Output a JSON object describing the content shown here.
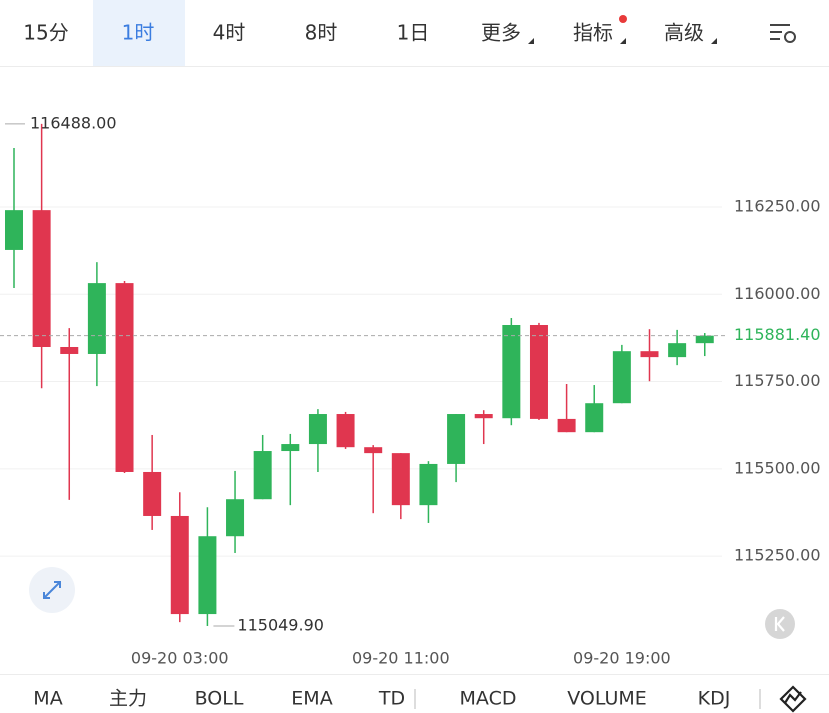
{
  "tabs": [
    "15分",
    "1时",
    "4时",
    "8时",
    "1日",
    "更多",
    "指标",
    "高级"
  ],
  "active_tab": 1,
  "indicators": [
    "MA",
    "主力",
    "BOLL",
    "EMA",
    "TD",
    "MACD",
    "VOLUME",
    "KDJ"
  ],
  "chart_data": {
    "type": "candlestick",
    "categories": [
      null,
      null,
      null,
      null,
      null,
      null,
      "09-20 03:00",
      null,
      null,
      null,
      null,
      null,
      null,
      null,
      "09-20 11:00",
      null,
      null,
      null,
      null,
      null,
      null,
      null,
      "09-20 19:00",
      null,
      null,
      null
    ],
    "open": [
      116127,
      116241,
      115849,
      115829,
      116032,
      115491,
      115365,
      115084,
      115307,
      115413,
      115551,
      115571,
      115657,
      115562,
      115545,
      115396,
      115514,
      115657,
      115645,
      115912,
      115643,
      115605,
      115688,
      115837,
      115820,
      115860
    ],
    "high": [
      116419,
      116488,
      115903,
      116092,
      116038,
      115597,
      115433,
      115390,
      115494,
      115597,
      115600,
      115671,
      115663,
      115568,
      115545,
      115522,
      115657,
      115668,
      115932,
      115918,
      115743,
      115740,
      115855,
      115900,
      115898,
      115889
    ],
    "low": [
      116018,
      115731,
      115411,
      115737,
      115488,
      115325,
      115061,
      115049.9,
      115259,
      115413,
      115396,
      115491,
      115557,
      115373,
      115356,
      115345,
      115462,
      115571,
      115625,
      115640,
      115605,
      115605,
      115688,
      115751,
      115797,
      115823
    ],
    "close": [
      116241,
      115849,
      115829,
      116032,
      115491,
      115365,
      115084,
      115307,
      115413,
      115551,
      115571,
      115657,
      115562,
      115545,
      115396,
      115514,
      115657,
      115645,
      115912,
      115643,
      115605,
      115688,
      115837,
      115820,
      115860,
      115881.4
    ],
    "up_color": "#2fb45a",
    "down_color": "#e0364f",
    "ylim": [
      115004,
      116651
    ],
    "yticks": [
      {
        "value": 115250,
        "label": "115250.00"
      },
      {
        "value": 115500,
        "label": "115500.00"
      },
      {
        "value": 115750,
        "label": "115750.00"
      },
      {
        "value": 116000,
        "label": "116000.00"
      },
      {
        "value": 116250,
        "label": "116250.00"
      }
    ],
    "grid": true,
    "last_price": {
      "value": 115881.4,
      "label": "115881.40"
    },
    "high_marker": {
      "value": 116488,
      "label": "116488.00"
    },
    "low_marker": {
      "value": 115049.9,
      "label": "115049.90"
    }
  }
}
